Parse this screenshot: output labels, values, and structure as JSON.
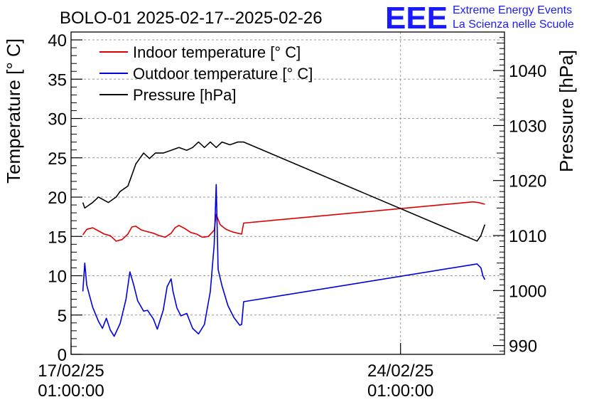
{
  "chart_data": {
    "type": "line",
    "title": "BOLO-01 2025-02-17--2025-02-26",
    "ylabel": "Temperature [° C]",
    "y2label": "Pressure [hPa]",
    "xlabel": "",
    "ylim": [
      0,
      41
    ],
    "y2lim": [
      988.4,
      1047.0
    ],
    "xlim": [
      "2025-02-17 01:00",
      "2025-02-26 06:00"
    ],
    "x_ticks": [
      {
        "x": "2025-02-17 01:00",
        "line1": "17/02/25",
        "line2": "01:00:00"
      },
      {
        "x": "2025-02-24 01:00",
        "line1": "24/02/25",
        "line2": "01:00:00"
      }
    ],
    "y_ticks": [
      0,
      5,
      10,
      15,
      20,
      25,
      30,
      35,
      40
    ],
    "y2_ticks": [
      990,
      1000,
      1010,
      1020,
      1030,
      1040
    ],
    "grid": true,
    "legend_position": "top-left",
    "series": [
      {
        "name": "Indoor temperature [° C]",
        "color": "#dd0000",
        "axis": "left",
        "points": [
          [
            "2025-02-17 07:00",
            15.2
          ],
          [
            "2025-02-17 09:00",
            15.9
          ],
          [
            "2025-02-17 12:00",
            16.1
          ],
          [
            "2025-02-17 15:00",
            15.7
          ],
          [
            "2025-02-17 18:00",
            15.3
          ],
          [
            "2025-02-17 21:00",
            15.1
          ],
          [
            "2025-02-18 00:00",
            14.4
          ],
          [
            "2025-02-18 03:00",
            14.6
          ],
          [
            "2025-02-18 06:00",
            15.3
          ],
          [
            "2025-02-18 08:00",
            16.2
          ],
          [
            "2025-02-18 10:00",
            16.3
          ],
          [
            "2025-02-18 13:00",
            15.8
          ],
          [
            "2025-02-18 16:00",
            15.6
          ],
          [
            "2025-02-18 19:00",
            15.4
          ],
          [
            "2025-02-18 22:00",
            15.1
          ],
          [
            "2025-02-19 01:00",
            14.9
          ],
          [
            "2025-02-19 04:00",
            15.4
          ],
          [
            "2025-02-19 06:00",
            16.1
          ],
          [
            "2025-02-19 08:00",
            16.4
          ],
          [
            "2025-02-19 11:00",
            16.0
          ],
          [
            "2025-02-19 14:00",
            15.5
          ],
          [
            "2025-02-19 17:00",
            15.3
          ],
          [
            "2025-02-19 20:00",
            14.9
          ],
          [
            "2025-02-19 23:00",
            15.0
          ],
          [
            "2025-02-20 02:00",
            15.8
          ],
          [
            "2025-02-20 03:00",
            17.8
          ],
          [
            "2025-02-20 05:00",
            16.5
          ],
          [
            "2025-02-20 08:00",
            15.9
          ],
          [
            "2025-02-20 11:00",
            15.6
          ],
          [
            "2025-02-20 14:00",
            15.4
          ],
          [
            "2025-02-20 16:00",
            15.3
          ],
          [
            "2025-02-20 17:00",
            16.7
          ],
          [
            "2025-02-25 14:00",
            19.4
          ],
          [
            "2025-02-25 17:00",
            19.3
          ],
          [
            "2025-02-25 20:00",
            19.1
          ]
        ]
      },
      {
        "name": "Outdoor temperature [° C]",
        "color": "#0000dd",
        "axis": "left",
        "points": [
          [
            "2025-02-17 07:00",
            8.0
          ],
          [
            "2025-02-17 08:00",
            11.6
          ],
          [
            "2025-02-17 09:00",
            8.8
          ],
          [
            "2025-02-17 12:00",
            6.0
          ],
          [
            "2025-02-17 15:00",
            4.2
          ],
          [
            "2025-02-17 17:00",
            3.3
          ],
          [
            "2025-02-17 19:00",
            4.6
          ],
          [
            "2025-02-17 21:00",
            3.1
          ],
          [
            "2025-02-17 23:00",
            2.3
          ],
          [
            "2025-02-18 02:00",
            3.9
          ],
          [
            "2025-02-18 05:00",
            7.0
          ],
          [
            "2025-02-18 07:00",
            10.5
          ],
          [
            "2025-02-18 09:00",
            8.8
          ],
          [
            "2025-02-18 11:00",
            6.8
          ],
          [
            "2025-02-18 14:00",
            5.5
          ],
          [
            "2025-02-18 16:00",
            5.6
          ],
          [
            "2025-02-18 19:00",
            4.5
          ],
          [
            "2025-02-18 21:00",
            3.2
          ],
          [
            "2025-02-19 00:00",
            5.6
          ],
          [
            "2025-02-19 02:00",
            8.6
          ],
          [
            "2025-02-19 04:00",
            9.6
          ],
          [
            "2025-02-19 05:00",
            8.0
          ],
          [
            "2025-02-19 07:00",
            5.9
          ],
          [
            "2025-02-19 09:00",
            4.9
          ],
          [
            "2025-02-19 12:00",
            5.2
          ],
          [
            "2025-02-19 15:00",
            3.3
          ],
          [
            "2025-02-19 18:00",
            2.6
          ],
          [
            "2025-02-19 21:00",
            3.8
          ],
          [
            "2025-02-20 00:00",
            8.0
          ],
          [
            "2025-02-20 02:00",
            14.0
          ],
          [
            "2025-02-20 03:00",
            21.6
          ],
          [
            "2025-02-20 04:00",
            10.8
          ],
          [
            "2025-02-20 06:00",
            8.7
          ],
          [
            "2025-02-20 09:00",
            6.2
          ],
          [
            "2025-02-20 12:00",
            4.7
          ],
          [
            "2025-02-20 15:00",
            3.7
          ],
          [
            "2025-02-20 16:00",
            3.8
          ],
          [
            "2025-02-20 17:00",
            6.7
          ],
          [
            "2025-02-25 16:00",
            11.5
          ],
          [
            "2025-02-25 18:00",
            11.0
          ],
          [
            "2025-02-25 19:00",
            10.0
          ],
          [
            "2025-02-25 20:00",
            9.5
          ]
        ]
      },
      {
        "name": "Pressure [hPa]",
        "color": "#000000",
        "axis": "right",
        "points": [
          [
            "2025-02-17 07:00",
            1016.0
          ],
          [
            "2025-02-17 08:00",
            1015.0
          ],
          [
            "2025-02-17 12:00",
            1016.0
          ],
          [
            "2025-02-17 15:00",
            1017.0
          ],
          [
            "2025-02-17 20:00",
            1016.0
          ],
          [
            "2025-02-18 00:00",
            1017.0
          ],
          [
            "2025-02-18 02:00",
            1018.0
          ],
          [
            "2025-02-18 06:00",
            1019.0
          ],
          [
            "2025-02-18 08:00",
            1021.0
          ],
          [
            "2025-02-18 10:00",
            1023.0
          ],
          [
            "2025-02-18 12:00",
            1024.0
          ],
          [
            "2025-02-18 14:00",
            1025.0
          ],
          [
            "2025-02-18 17:00",
            1024.0
          ],
          [
            "2025-02-18 20:00",
            1025.0
          ],
          [
            "2025-02-19 00:00",
            1025.0
          ],
          [
            "2025-02-19 04:00",
            1025.5
          ],
          [
            "2025-02-19 08:00",
            1026.0
          ],
          [
            "2025-02-19 12:00",
            1025.5
          ],
          [
            "2025-02-19 15:00",
            1026.0
          ],
          [
            "2025-02-19 18:00",
            1027.0
          ],
          [
            "2025-02-19 21:00",
            1026.0
          ],
          [
            "2025-02-20 00:00",
            1027.0
          ],
          [
            "2025-02-20 03:00",
            1026.0
          ],
          [
            "2025-02-20 06:00",
            1027.0
          ],
          [
            "2025-02-20 10:00",
            1026.5
          ],
          [
            "2025-02-20 14:00",
            1027.0
          ],
          [
            "2025-02-20 17:00",
            1027.0
          ],
          [
            "2025-02-25 16:00",
            1009.0
          ],
          [
            "2025-02-25 18:00",
            1010.0
          ],
          [
            "2025-02-25 19:00",
            1011.0
          ],
          [
            "2025-02-25 20:00",
            1012.0
          ]
        ]
      }
    ]
  },
  "logo": {
    "letters": "EEE",
    "line1": "Extreme Energy Events",
    "line2": "La Scienza nelle Scuole"
  }
}
